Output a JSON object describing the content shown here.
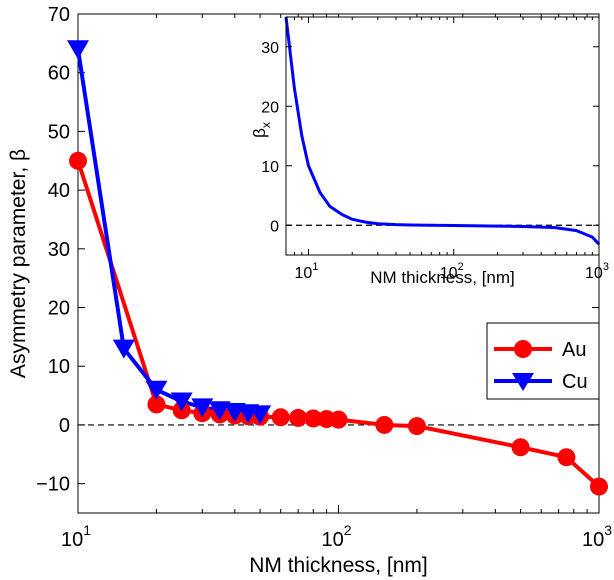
{
  "chart_data": [
    {
      "type": "line",
      "xscale": "log",
      "xlabel": "NM thickness, [nm]",
      "ylabel": "Asymmetry parameter, β",
      "xlim": [
        10,
        1000
      ],
      "ylim": [
        -15,
        70
      ],
      "xticks": [
        10,
        100,
        1000
      ],
      "yticks": [
        -10,
        0,
        10,
        20,
        30,
        40,
        50,
        60,
        70
      ],
      "ytick_labels": [
        "−10",
        "0",
        "10",
        "20",
        "30",
        "40",
        "50",
        "60",
        "70"
      ],
      "reference_line": 0,
      "legend": "right",
      "series": [
        {
          "name": "Au",
          "color": "#ff0000",
          "marker": "circle",
          "x": [
            10,
            20,
            25,
            30,
            35,
            40,
            45,
            50,
            60,
            70,
            80,
            90,
            100,
            150,
            200,
            500,
            750,
            1000
          ],
          "y": [
            45,
            3.5,
            2.5,
            2,
            1.8,
            1.6,
            1.5,
            1.4,
            1.3,
            1.2,
            1.1,
            1.0,
            0.9,
            0.0,
            -0.2,
            -3.8,
            -5.5,
            -10.5
          ]
        },
        {
          "name": "Cu",
          "color": "#0000ff",
          "marker": "triangle-down",
          "x": [
            10,
            15,
            20,
            25,
            30,
            35,
            40,
            45,
            50
          ],
          "y": [
            64,
            13,
            6,
            4,
            3,
            2.5,
            2.2,
            2.0,
            1.8
          ]
        }
      ]
    },
    {
      "type": "line",
      "xscale": "log",
      "xlabel": "NM thickness, [nm]",
      "ylabel": "β",
      "ylabel_sub": "x",
      "xlim": [
        7,
        1000
      ],
      "ylim": [
        -5,
        35
      ],
      "xticks": [
        10,
        100,
        1000
      ],
      "yticks": [
        0,
        10,
        20,
        30
      ],
      "reference_line": 0,
      "series": [
        {
          "color": "#0000ff",
          "x": [
            7,
            8,
            9,
            10,
            12,
            14,
            17,
            20,
            25,
            30,
            40,
            50,
            70,
            100,
            200,
            300,
            500,
            700,
            900,
            1000
          ],
          "y": [
            35,
            23,
            15,
            10,
            5.5,
            3.2,
            1.8,
            1.0,
            0.5,
            0.25,
            0.1,
            0.05,
            0.0,
            -0.05,
            -0.15,
            -0.2,
            -0.4,
            -0.9,
            -2.0,
            -3.2
          ]
        }
      ]
    }
  ],
  "exponent_base": "10",
  "colors": {
    "dashed_line": "#000000",
    "axes": "#000000"
  }
}
